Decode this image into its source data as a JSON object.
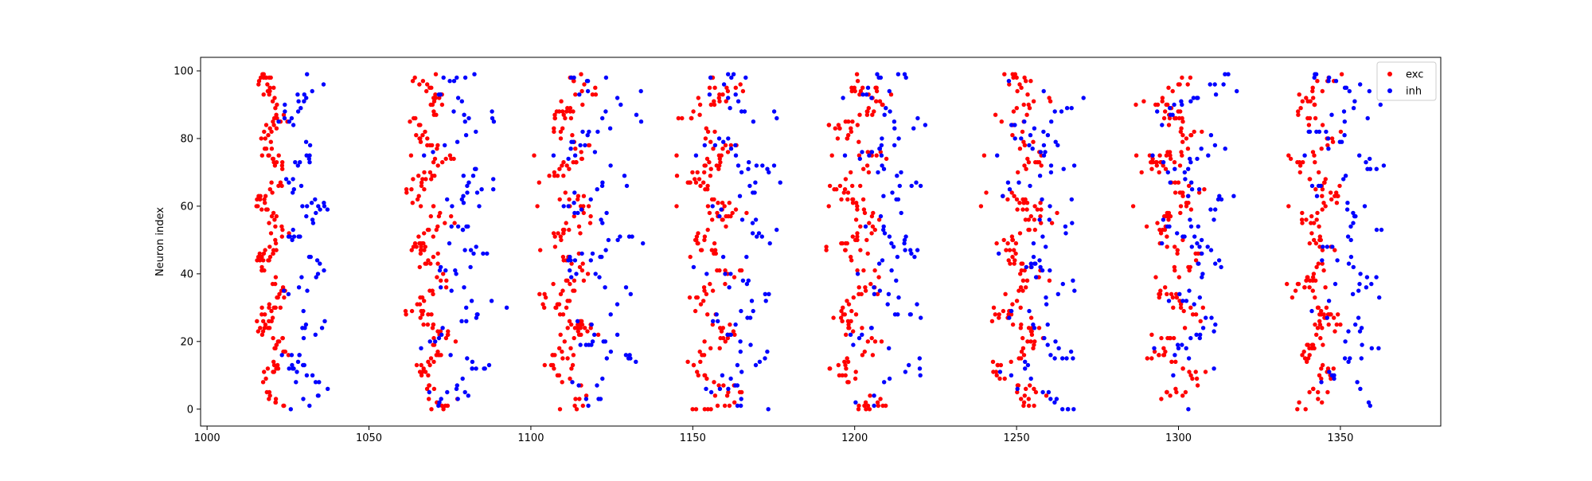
{
  "chart_data": {
    "type": "scatter",
    "title": "",
    "xlabel": "",
    "ylabel": "Neuron index",
    "xlim": [
      998,
      1381
    ],
    "ylim": [
      -5,
      104
    ],
    "xticks": [
      1000,
      1050,
      1100,
      1150,
      1200,
      1250,
      1300,
      1350
    ],
    "yticks": [
      0,
      20,
      40,
      60,
      80,
      100
    ],
    "grid": false,
    "legend_position": "top-right",
    "series": [
      {
        "name": "exc",
        "color": "#ff0000",
        "marker": "dot",
        "bursts": [
          {
            "center": 1020,
            "spread": 3,
            "points": 170
          },
          {
            "center": 1069,
            "spread": 4,
            "points": 170
          },
          {
            "center": 1112,
            "spread": 5,
            "points": 170
          },
          {
            "center": 1156,
            "spread": 5,
            "points": 170
          },
          {
            "center": 1201,
            "spread": 5,
            "points": 170
          },
          {
            "center": 1251,
            "spread": 5,
            "points": 170
          },
          {
            "center": 1299,
            "spread": 5,
            "points": 170
          },
          {
            "center": 1343,
            "spread": 4,
            "points": 170
          }
        ],
        "outliers": [
          [
            1017,
            75
          ],
          [
            1063,
            75
          ],
          [
            1101,
            75
          ],
          [
            1145,
            75
          ],
          [
            1193,
            75
          ],
          [
            1240,
            75
          ],
          [
            1287,
            75
          ],
          [
            1334,
            75
          ],
          [
            1066,
            60
          ],
          [
            1102,
            60
          ],
          [
            1145,
            60
          ],
          [
            1192,
            60
          ],
          [
            1239,
            60
          ],
          [
            1286,
            60
          ],
          [
            1334,
            60
          ]
        ]
      },
      {
        "name": "inh",
        "color": "#0000ff",
        "marker": "dot",
        "bursts": [
          {
            "center": 1030,
            "spread": 4,
            "points": 95
          },
          {
            "center": 1078,
            "spread": 6,
            "points": 95
          },
          {
            "center": 1121,
            "spread": 7,
            "points": 95
          },
          {
            "center": 1165,
            "spread": 7,
            "points": 95
          },
          {
            "center": 1210,
            "spread": 7,
            "points": 95
          },
          {
            "center": 1258,
            "spread": 7,
            "points": 95
          },
          {
            "center": 1306,
            "spread": 7,
            "points": 95
          },
          {
            "center": 1352,
            "spread": 7,
            "points": 95
          }
        ],
        "outliers": [
          [
            1067,
            75
          ],
          [
            1107,
            75
          ],
          [
            1151,
            75
          ],
          [
            1197,
            75
          ],
          [
            1244,
            75
          ],
          [
            1292,
            75
          ],
          [
            1339,
            75
          ],
          [
            1088,
            88
          ],
          [
            1134,
            94
          ],
          [
            1177,
            67
          ],
          [
            1219,
            67
          ],
          [
            1267,
            62
          ],
          [
            1318,
            94
          ],
          [
            1362,
            33
          ]
        ]
      }
    ]
  }
}
